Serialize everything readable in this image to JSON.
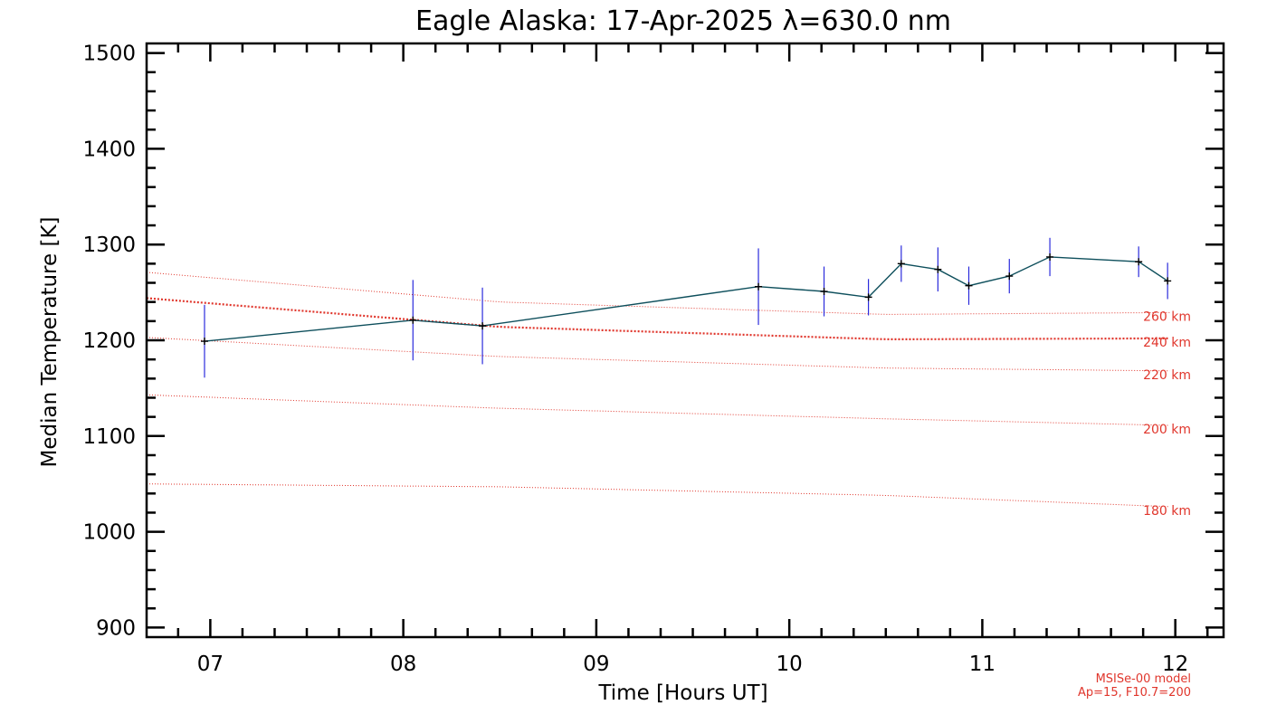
{
  "chart_data": {
    "type": "line",
    "title": "Eagle Alaska: 17-Apr-2025 λ=630.0 nm",
    "xlabel": "Time [Hours UT]",
    "ylabel": "Median Temperature [K]",
    "xlim": [
      6.67,
      12.25
    ],
    "ylim": [
      890,
      1510
    ],
    "x_ticks": [
      7,
      8,
      9,
      10,
      11,
      12
    ],
    "x_tick_labels": [
      "07",
      "08",
      "09",
      "10",
      "11",
      "12"
    ],
    "y_ticks": [
      900,
      1000,
      1100,
      1200,
      1300,
      1400,
      1500
    ],
    "y_tick_labels": [
      "900",
      "1000",
      "1100",
      "1200",
      "1300",
      "1400",
      "1500"
    ],
    "series": [
      {
        "name": "Median Temperature",
        "color": "#0e4f5c",
        "errorbar_color": "#2b2bdc",
        "x": [
          6.97,
          8.05,
          8.41,
          9.84,
          10.18,
          10.41,
          10.58,
          10.77,
          10.93,
          11.14,
          11.35,
          11.81,
          11.96
        ],
        "y": [
          1199,
          1221,
          1215,
          1256,
          1251,
          1245,
          1280,
          1274,
          1257,
          1267,
          1287,
          1282,
          1262
        ],
        "err": [
          38,
          42,
          40,
          40,
          26,
          19,
          19,
          23,
          20,
          18,
          20,
          16,
          19
        ]
      }
    ],
    "model_curves": [
      {
        "label": "260 km",
        "color": "#e0362c",
        "x": [
          6.67,
          8.5,
          10.5,
          12.0
        ],
        "y": [
          1271,
          1240,
          1227,
          1229
        ]
      },
      {
        "label": "240 km",
        "color": "#e0362c",
        "emphasis": true,
        "x": [
          6.67,
          8.5,
          10.5,
          12.0
        ],
        "y": [
          1244,
          1214,
          1201,
          1202
        ]
      },
      {
        "label": "220 km",
        "color": "#e0362c",
        "x": [
          6.67,
          8.5,
          10.5,
          12.0
        ],
        "y": [
          1203,
          1183,
          1171,
          1168
        ]
      },
      {
        "label": "200 km",
        "color": "#e0362c",
        "x": [
          6.67,
          8.5,
          10.5,
          12.0
        ],
        "y": [
          1143,
          1129,
          1118,
          1111
        ]
      },
      {
        "label": "180 km",
        "color": "#e0362c",
        "x": [
          6.67,
          8.5,
          10.5,
          12.0
        ],
        "y": [
          1050,
          1047,
          1038,
          1026
        ]
      }
    ],
    "label_positions": [
      "260 km",
      "240 km",
      "220 km",
      "200 km",
      "180 km"
    ],
    "model_note_line1": "MSISe-00 model",
    "model_note_line2": "Ap=15, F10.7=200",
    "grid": false
  }
}
